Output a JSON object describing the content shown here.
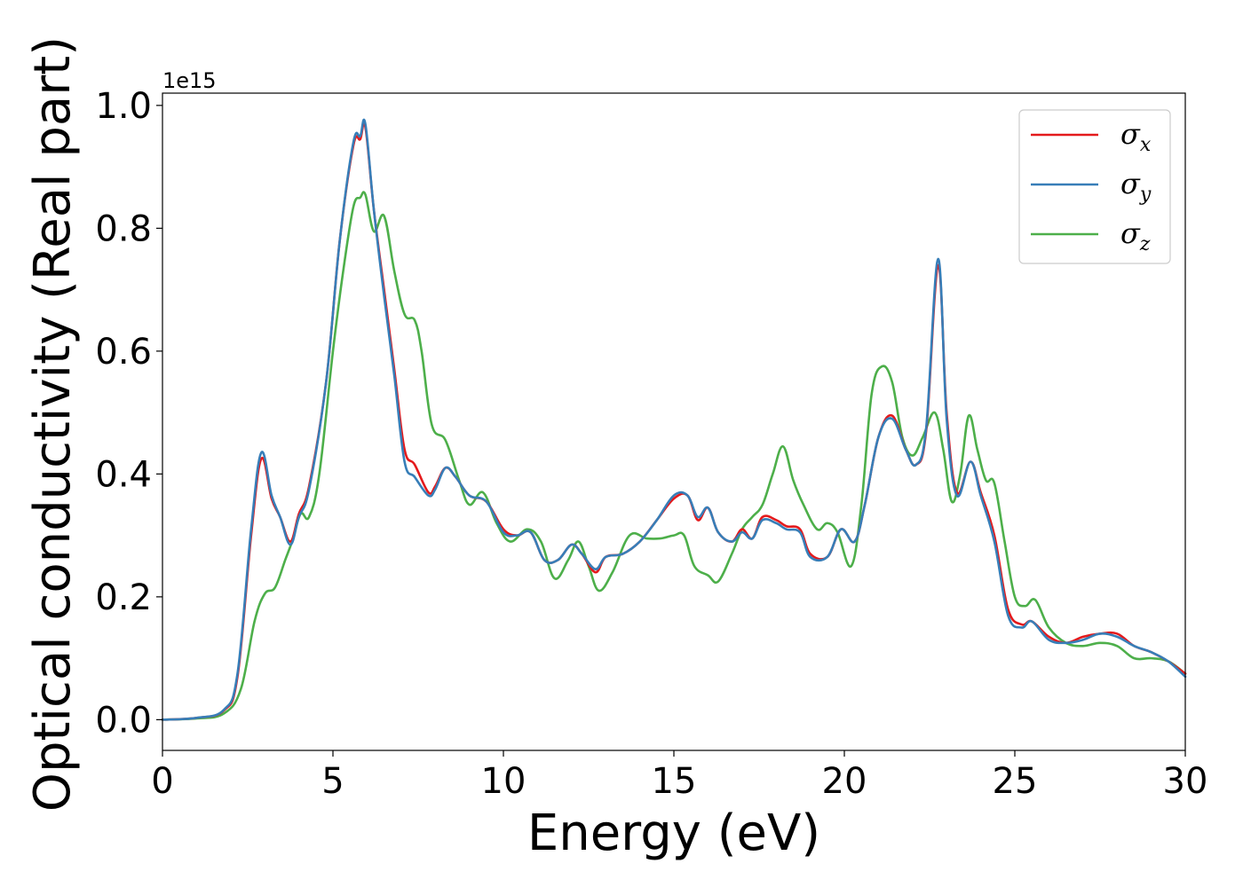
{
  "chart_data": {
    "type": "line",
    "xlabel": "Energy (eV)",
    "ylabel": "Optical conductivity (Real part)",
    "y_offset_label": "1e15",
    "xlim": [
      0,
      30
    ],
    "ylim": [
      -0.05,
      1.02
    ],
    "x_ticks": [
      0,
      5,
      10,
      15,
      20,
      25,
      30
    ],
    "x_tick_labels": [
      "0",
      "5",
      "10",
      "15",
      "20",
      "25",
      "30"
    ],
    "y_ticks": [
      0.0,
      0.2,
      0.4,
      0.6,
      0.8,
      1.0
    ],
    "y_tick_labels": [
      "0.0",
      "0.2",
      "0.4",
      "0.6",
      "0.8",
      "1.0"
    ],
    "grid": false,
    "legend_position": "top-right",
    "series": [
      {
        "name": "σ_x",
        "symbol": "σ",
        "subscript": "x",
        "color": "#e41a1c",
        "x": [
          0,
          1,
          1.8,
          2.2,
          2.6,
          2.9,
          3.2,
          3.45,
          3.75,
          4.0,
          4.3,
          4.8,
          5.2,
          5.6,
          5.8,
          5.95,
          6.2,
          6.5,
          6.8,
          7.1,
          7.4,
          7.8,
          8.0,
          8.3,
          8.6,
          9.0,
          9.5,
          10.0,
          10.4,
          10.8,
          11.2,
          11.6,
          12.0,
          12.3,
          12.7,
          13.0,
          13.5,
          14.0,
          14.5,
          15.0,
          15.4,
          15.7,
          16.0,
          16.3,
          16.7,
          17.0,
          17.3,
          17.6,
          18.0,
          18.3,
          18.7,
          19.0,
          19.5,
          19.9,
          20.3,
          20.6,
          21.0,
          21.4,
          21.8,
          22.1,
          22.4,
          22.75,
          23.0,
          23.3,
          23.7,
          24.0,
          24.4,
          24.8,
          25.2,
          25.5,
          26.0,
          26.5,
          27.0,
          27.5,
          28.0,
          28.5,
          29.0,
          29.5,
          30.0
        ],
        "values": [
          0.0,
          0.003,
          0.015,
          0.07,
          0.3,
          0.425,
          0.36,
          0.33,
          0.29,
          0.335,
          0.38,
          0.55,
          0.78,
          0.935,
          0.945,
          0.965,
          0.83,
          0.7,
          0.57,
          0.44,
          0.415,
          0.37,
          0.38,
          0.41,
          0.395,
          0.365,
          0.355,
          0.31,
          0.3,
          0.305,
          0.26,
          0.26,
          0.285,
          0.27,
          0.24,
          0.265,
          0.27,
          0.29,
          0.325,
          0.36,
          0.365,
          0.325,
          0.345,
          0.305,
          0.29,
          0.31,
          0.295,
          0.33,
          0.325,
          0.315,
          0.31,
          0.27,
          0.265,
          0.31,
          0.29,
          0.35,
          0.46,
          0.495,
          0.44,
          0.415,
          0.47,
          0.74,
          0.5,
          0.37,
          0.42,
          0.37,
          0.3,
          0.18,
          0.155,
          0.16,
          0.135,
          0.125,
          0.135,
          0.14,
          0.14,
          0.12,
          0.11,
          0.095,
          0.075
        ]
      },
      {
        "name": "σ_y",
        "symbol": "σ",
        "subscript": "y",
        "color": "#377eb8",
        "x": [
          0,
          1,
          1.8,
          2.2,
          2.6,
          2.9,
          3.2,
          3.45,
          3.75,
          4.0,
          4.3,
          4.8,
          5.2,
          5.6,
          5.8,
          5.95,
          6.2,
          6.5,
          6.8,
          7.1,
          7.4,
          7.8,
          8.0,
          8.3,
          8.6,
          9.0,
          9.5,
          10.0,
          10.4,
          10.8,
          11.2,
          11.6,
          12.0,
          12.3,
          12.7,
          13.0,
          13.5,
          14.0,
          14.5,
          15.0,
          15.4,
          15.7,
          16.0,
          16.3,
          16.7,
          17.0,
          17.3,
          17.6,
          18.0,
          18.3,
          18.7,
          19.0,
          19.5,
          19.9,
          20.3,
          20.6,
          21.0,
          21.4,
          21.8,
          22.1,
          22.4,
          22.75,
          23.0,
          23.3,
          23.7,
          24.0,
          24.4,
          24.8,
          25.2,
          25.5,
          26.0,
          26.5,
          27.0,
          27.5,
          28.0,
          28.5,
          29.0,
          29.5,
          30.0
        ],
        "values": [
          0.0,
          0.003,
          0.016,
          0.075,
          0.31,
          0.435,
          0.365,
          0.33,
          0.285,
          0.33,
          0.375,
          0.55,
          0.78,
          0.94,
          0.95,
          0.97,
          0.83,
          0.69,
          0.56,
          0.42,
          0.395,
          0.365,
          0.375,
          0.41,
          0.395,
          0.365,
          0.355,
          0.305,
          0.3,
          0.305,
          0.26,
          0.26,
          0.285,
          0.27,
          0.245,
          0.265,
          0.27,
          0.29,
          0.325,
          0.365,
          0.365,
          0.33,
          0.345,
          0.305,
          0.29,
          0.305,
          0.295,
          0.325,
          0.32,
          0.31,
          0.305,
          0.265,
          0.265,
          0.31,
          0.29,
          0.35,
          0.46,
          0.49,
          0.44,
          0.415,
          0.475,
          0.75,
          0.49,
          0.365,
          0.42,
          0.365,
          0.29,
          0.17,
          0.15,
          0.16,
          0.13,
          0.125,
          0.13,
          0.14,
          0.135,
          0.12,
          0.11,
          0.095,
          0.07
        ]
      },
      {
        "name": "σ_z",
        "symbol": "σ",
        "subscript": "z",
        "color": "#4daf4a",
        "x": [
          0,
          1,
          1.8,
          2.3,
          2.7,
          3.0,
          3.3,
          3.6,
          3.8,
          4.05,
          4.3,
          4.6,
          5.0,
          5.3,
          5.6,
          5.8,
          5.95,
          6.2,
          6.5,
          6.8,
          7.1,
          7.4,
          7.6,
          7.9,
          8.3,
          8.7,
          9.0,
          9.4,
          9.8,
          10.2,
          10.7,
          11.1,
          11.5,
          11.9,
          12.2,
          12.5,
          12.8,
          13.2,
          13.7,
          14.2,
          14.6,
          15.0,
          15.3,
          15.6,
          16.0,
          16.3,
          16.7,
          17.0,
          17.3,
          17.6,
          17.9,
          18.2,
          18.5,
          18.8,
          19.2,
          19.5,
          19.8,
          20.2,
          20.5,
          20.8,
          21.1,
          21.4,
          21.7,
          22.0,
          22.3,
          22.65,
          22.9,
          23.15,
          23.4,
          23.65,
          23.9,
          24.15,
          24.4,
          24.7,
          25.0,
          25.3,
          25.6,
          26.0,
          26.5,
          27.0,
          27.5,
          28.0,
          28.5,
          29.0,
          29.5,
          30.0
        ],
        "values": [
          0.0,
          0.002,
          0.01,
          0.05,
          0.16,
          0.205,
          0.215,
          0.26,
          0.29,
          0.335,
          0.33,
          0.4,
          0.6,
          0.73,
          0.835,
          0.85,
          0.855,
          0.795,
          0.82,
          0.73,
          0.66,
          0.65,
          0.6,
          0.48,
          0.455,
          0.39,
          0.35,
          0.37,
          0.32,
          0.29,
          0.31,
          0.29,
          0.23,
          0.26,
          0.29,
          0.25,
          0.21,
          0.24,
          0.3,
          0.295,
          0.295,
          0.3,
          0.3,
          0.25,
          0.235,
          0.225,
          0.27,
          0.31,
          0.33,
          0.35,
          0.4,
          0.445,
          0.39,
          0.35,
          0.31,
          0.32,
          0.305,
          0.25,
          0.35,
          0.53,
          0.575,
          0.55,
          0.46,
          0.43,
          0.46,
          0.5,
          0.44,
          0.355,
          0.4,
          0.495,
          0.44,
          0.39,
          0.385,
          0.29,
          0.2,
          0.185,
          0.195,
          0.15,
          0.125,
          0.12,
          0.125,
          0.12,
          0.1,
          0.1,
          0.095,
          0.075
        ]
      }
    ]
  }
}
